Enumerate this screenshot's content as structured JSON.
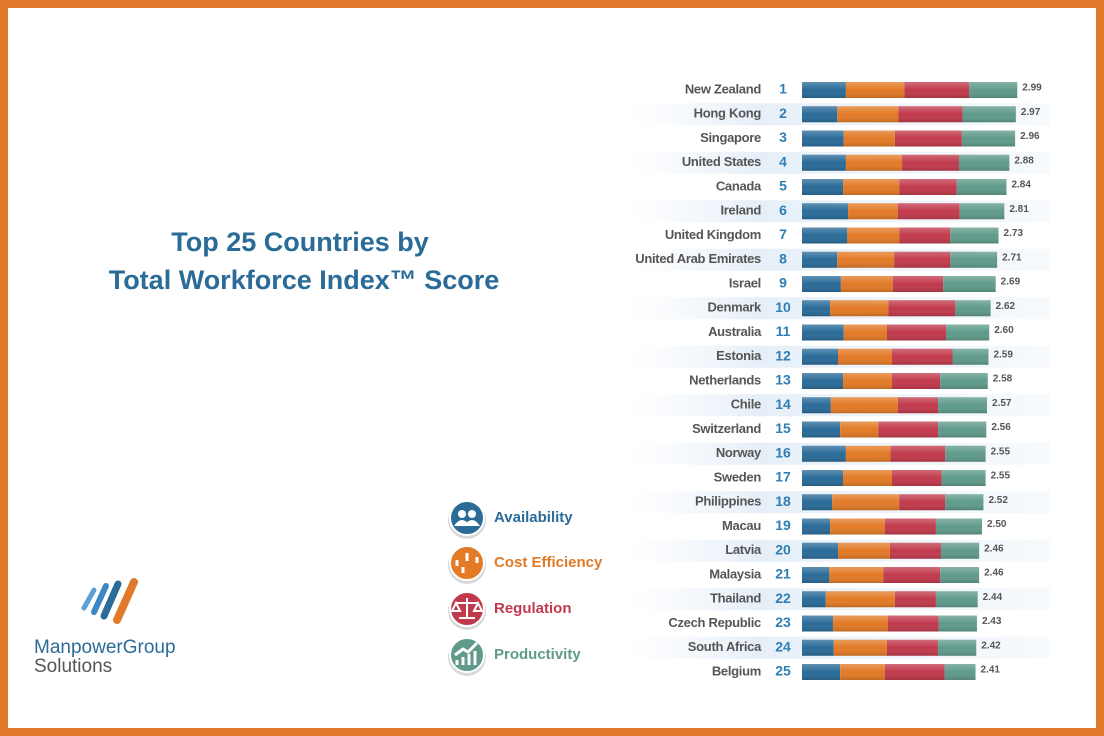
{
  "chart_data": {
    "type": "stacked-bar-horizontal",
    "title": [
      "Top 25 Countries by",
      "Total Workforce Index™ Score"
    ],
    "categories": [
      "New Zealand",
      "Hong Kong",
      "Singapore",
      "United States",
      "Canada",
      "Ireland",
      "United Kingdom",
      "United Arab Emirates",
      "Israel",
      "Denmark",
      "Australia",
      "Estonia",
      "Netherlands",
      "Chile",
      "Switzerland",
      "Norway",
      "Sweden",
      "Philippines",
      "Macau",
      "Latvia",
      "Malaysia",
      "Thailand",
      "Czech Republic",
      "South Africa",
      "Belgium"
    ],
    "ranks": [
      1,
      2,
      3,
      4,
      5,
      6,
      7,
      8,
      9,
      10,
      11,
      12,
      13,
      14,
      15,
      16,
      17,
      18,
      19,
      20,
      21,
      22,
      23,
      24,
      25
    ],
    "total_labels": [
      "2.99",
      "2.97",
      "2.96",
      "2.88",
      "2.84",
      "2.81",
      "2.73",
      "2.71",
      "2.69",
      "2.62",
      "2.60",
      "2.59",
      "2.58",
      "2.57",
      "2.56",
      "2.55",
      "2.55",
      "2.52",
      "2.50",
      "2.46",
      "2.46",
      "2.44",
      "2.43",
      "2.42",
      "2.41"
    ],
    "xlim": [
      0,
      3
    ],
    "series": [
      {
        "name": "Availability",
        "color": "#2a6b98",
        "values": [
          0.61,
          0.49,
          0.58,
          0.61,
          0.57,
          0.64,
          0.63,
          0.49,
          0.54,
          0.39,
          0.58,
          0.5,
          0.57,
          0.4,
          0.53,
          0.61,
          0.57,
          0.42,
          0.39,
          0.5,
          0.38,
          0.33,
          0.43,
          0.44,
          0.53
        ]
      },
      {
        "name": "Cost Efficiency",
        "color": "#e27a26",
        "values": [
          0.81,
          0.85,
          0.71,
          0.78,
          0.78,
          0.69,
          0.72,
          0.79,
          0.72,
          0.81,
          0.6,
          0.75,
          0.68,
          0.93,
          0.53,
          0.62,
          0.68,
          0.93,
          0.76,
          0.72,
          0.75,
          0.96,
          0.76,
          0.74,
          0.62
        ]
      },
      {
        "name": "Regulation",
        "color": "#c13a4c",
        "values": [
          0.9,
          0.89,
          0.93,
          0.79,
          0.8,
          0.86,
          0.71,
          0.78,
          0.7,
          0.93,
          0.82,
          0.84,
          0.67,
          0.56,
          0.83,
          0.76,
          0.69,
          0.64,
          0.71,
          0.71,
          0.79,
          0.57,
          0.71,
          0.71,
          0.83
        ]
      },
      {
        "name": "Productivity",
        "color": "#5f9a8a",
        "values": [
          0.67,
          0.74,
          0.74,
          0.7,
          0.69,
          0.62,
          0.67,
          0.65,
          0.73,
          0.49,
          0.6,
          0.5,
          0.66,
          0.68,
          0.67,
          0.56,
          0.61,
          0.53,
          0.64,
          0.53,
          0.54,
          0.58,
          0.53,
          0.53,
          0.43
        ]
      }
    ]
  },
  "logo": {
    "line1": "ManpowerGroup",
    "line2": "Solutions"
  }
}
